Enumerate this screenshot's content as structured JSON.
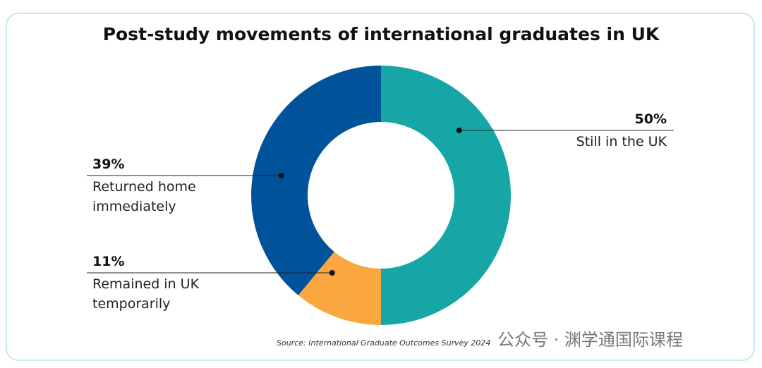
{
  "chart_data": {
    "type": "donut",
    "title": "Post-study movements of international graduates in UK",
    "categories": [
      "Still in the UK",
      "Remained in UK temporarily",
      "Returned home immediately"
    ],
    "values": [
      50,
      11,
      39
    ],
    "value_labels": [
      "50%",
      "11%",
      "39%"
    ],
    "colors": [
      "#17a6a6",
      "#f9a73e",
      "#00529b"
    ],
    "source": "Source: International Graduate Outcomes Survey 2024",
    "watermark": "公众号 · 渊学通国际课程"
  }
}
